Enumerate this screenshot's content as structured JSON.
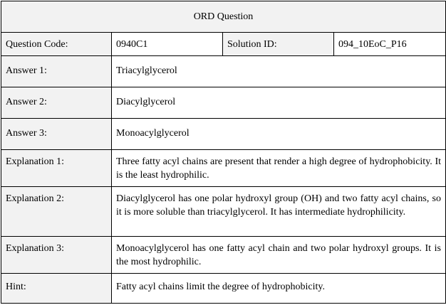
{
  "title": "ORD Question",
  "header": {
    "question_code_label": "Question Code:",
    "question_code_value": "0940C1",
    "solution_id_label": "Solution ID:",
    "solution_id_value": "094_10EoC_P16"
  },
  "answers": [
    {
      "label": "Answer 1:",
      "value": "Triacylglycerol"
    },
    {
      "label": "Answer 2:",
      "value": "Diacylglycerol"
    },
    {
      "label": "Answer 3:",
      "value": "Monoacylglycerol"
    }
  ],
  "explanations": [
    {
      "label": "Explanation 1:",
      "value": "Three fatty acyl chains are present that render a high degree of hydrophobicity. It is the least hydrophilic."
    },
    {
      "label": "Explanation 2:",
      "value": "Diacylglycerol has one polar hydroxyl group (OH) and two fatty acyl chains, so it is more soluble than triacylglycerol. It has intermediate hydrophilicity."
    },
    {
      "label": "Explanation 3:",
      "value": "Monoacylglycerol has one fatty acyl chain and two polar hydroxyl groups. It is the most hydrophilic."
    }
  ],
  "hint": {
    "label": "Hint:",
    "value": "Fatty acyl chains limit the degree of hydrophobicity."
  }
}
